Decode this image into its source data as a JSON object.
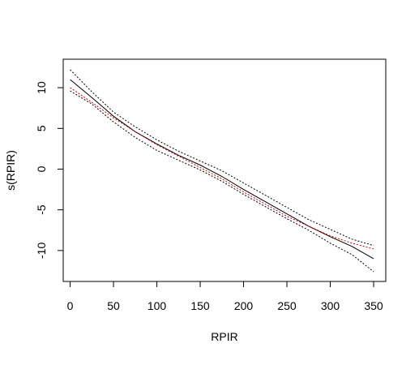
{
  "chart_data": {
    "type": "line",
    "title": "",
    "xlabel": "RPIR",
    "ylabel": "s(RPIR)",
    "xlim": [
      -8,
      364
    ],
    "ylim": [
      -13.8,
      13.5
    ],
    "xticks": [
      0,
      50,
      100,
      150,
      200,
      250,
      300,
      350
    ],
    "yticks": [
      -10,
      -5,
      0,
      5,
      10
    ],
    "grid": false,
    "legend": "none",
    "series": [
      {
        "color": "#000000",
        "linestyle": "solid",
        "x": [
          0,
          25,
          50,
          75,
          100,
          125,
          150,
          175,
          200,
          225,
          250,
          275,
          300,
          325,
          350
        ],
        "y": [
          11.0,
          8.8,
          6.5,
          4.6,
          3.1,
          1.7,
          0.5,
          -0.9,
          -2.5,
          -4.0,
          -5.5,
          -7.0,
          -8.3,
          -9.5,
          -11.0
        ]
      },
      {
        "color": "#000000",
        "linestyle": "dotted",
        "x": [
          0,
          25,
          50,
          75,
          100,
          125,
          150,
          175,
          200,
          225,
          250,
          275,
          300,
          325,
          350
        ],
        "y": [
          12.2,
          9.5,
          7.0,
          5.2,
          3.6,
          2.2,
          1.0,
          -0.2,
          -1.7,
          -3.2,
          -4.7,
          -6.2,
          -7.4,
          -8.6,
          -9.4
        ]
      },
      {
        "color": "#000000",
        "linestyle": "dotted",
        "x": [
          0,
          25,
          50,
          75,
          100,
          125,
          150,
          175,
          200,
          225,
          250,
          275,
          300,
          325,
          350
        ],
        "y": [
          9.6,
          8.0,
          5.8,
          3.9,
          2.3,
          1.1,
          -0.1,
          -1.5,
          -3.1,
          -4.6,
          -6.1,
          -7.5,
          -9.1,
          -10.5,
          -12.6
        ]
      },
      {
        "color": "#cc0000",
        "linestyle": "dotted",
        "x": [
          0,
          25,
          50,
          75,
          100,
          125,
          150,
          175,
          200,
          225,
          250,
          275,
          300,
          325,
          350
        ],
        "y": [
          10.0,
          8.2,
          6.3,
          4.6,
          3.0,
          1.6,
          0.2,
          -1.2,
          -2.8,
          -4.3,
          -5.8,
          -7.0,
          -8.2,
          -9.1,
          -9.8
        ]
      }
    ]
  }
}
